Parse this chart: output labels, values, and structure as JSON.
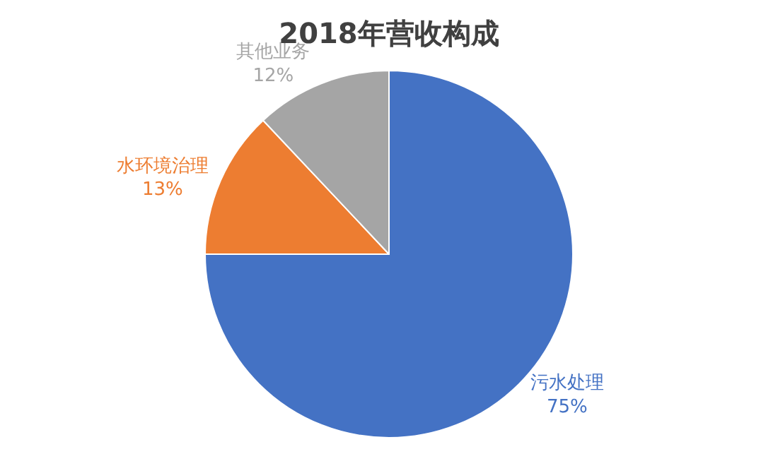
{
  "chart_data": {
    "type": "pie",
    "title": "2018年营收构成",
    "categories": [
      "污水处理",
      "水环境治理",
      "其他业务"
    ],
    "values": [
      75,
      13,
      12
    ],
    "value_labels": [
      "75%",
      "13%",
      "12%"
    ],
    "colors": [
      "#4472c4",
      "#ed7d31",
      "#a5a5a5"
    ],
    "legend": false
  }
}
